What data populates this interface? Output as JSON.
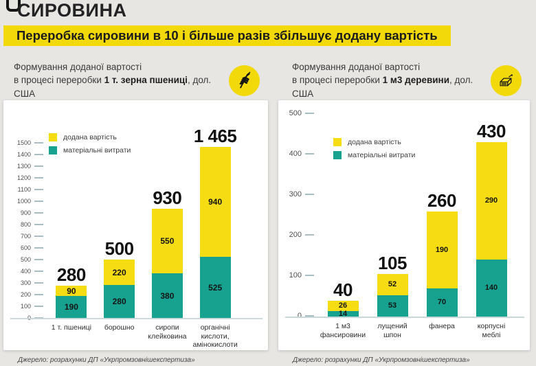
{
  "page": {
    "title": "СИРОВИНА",
    "banner": "Переробка сировини в 10 і більше разів збільшує додану вартість"
  },
  "legend": {
    "added": "додана вартість",
    "material": "матеріальні витрати"
  },
  "colors": {
    "background": "#E8E6E3",
    "card": "#FFFFFF",
    "banner": "#F2DA0A",
    "added": "#F6DC12",
    "material": "#17A290"
  },
  "source": "Джерело: розрахунки ДП «Укрпромзовнішекспертиза»",
  "chart_data": [
    {
      "type": "bar",
      "stacked": true,
      "header": {
        "line1": "Формування доданої вартості",
        "line2_pre": "в процесі переробки ",
        "line2_bold": "1 т. зерна пшениці",
        "line2_post": ", дол. США"
      },
      "icon": "wheat-icon",
      "categories": [
        "1 т. пшениці",
        "борошно",
        "сиропи\nклейковина",
        "органічні кислоти,\nамінокислоти"
      ],
      "series": [
        {
          "name": "додана вартість",
          "color": "#F6DC12",
          "values": [
            90,
            220,
            550,
            940
          ]
        },
        {
          "name": "матеріальні витрати",
          "color": "#17A290",
          "values": [
            190,
            280,
            380,
            525
          ]
        }
      ],
      "totals": [
        "280",
        "500",
        "930",
        "1 465"
      ],
      "ylabel": "дол. США",
      "ylim": [
        0,
        1500
      ],
      "ytick_step": 100,
      "grid": false,
      "legend_position": "top-left"
    },
    {
      "type": "bar",
      "stacked": true,
      "header": {
        "line1": "Формування доданої вартості",
        "line2_pre": "в процесі переробки ",
        "line2_bold": "1 м3 деревини",
        "line2_post": ", дол. США"
      },
      "icon": "lumber-icon",
      "categories": [
        "1 м3\nфансировини",
        "лущений\nшпон",
        "фанера",
        "корпусні\nмеблі"
      ],
      "series": [
        {
          "name": "додана вартість",
          "color": "#F6DC12",
          "values": [
            26,
            52,
            190,
            290
          ]
        },
        {
          "name": "матеріальні витрати",
          "color": "#17A290",
          "values": [
            14,
            53,
            70,
            140
          ]
        }
      ],
      "totals": [
        "40",
        "105",
        "260",
        "430"
      ],
      "ylabel": "дол. США",
      "ylim": [
        0,
        500
      ],
      "ytick_step": 100,
      "grid": false,
      "legend_position": "top-left"
    }
  ]
}
